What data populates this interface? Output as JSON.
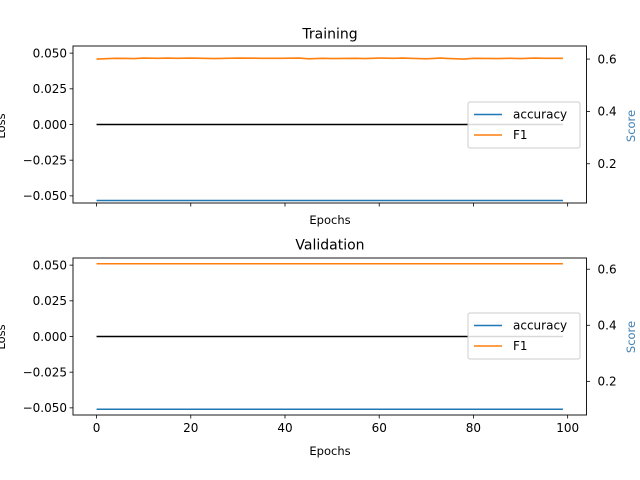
{
  "colors": {
    "accuracy": "#1f77b4",
    "f1": "#ff7f0e",
    "loss": "#000000",
    "score_axis": "#4682b4"
  },
  "chart_data": [
    {
      "type": "line",
      "title": "Training",
      "xlabel": "Epochs",
      "ylabel": "Loss",
      "ylabel_right": "Score",
      "xlim": [
        -5,
        104
      ],
      "xticks": [
        0,
        20,
        40,
        60,
        80,
        100
      ],
      "xtick_labels_shown": false,
      "ylim": [
        -0.055,
        0.055
      ],
      "yticks": [
        0.05,
        0.025,
        0.0,
        -0.025,
        -0.05
      ],
      "ytick_labels": [
        "0.050",
        "0.025",
        "0.000",
        "−0.025",
        "−0.050"
      ],
      "ylim_right": [
        0.05,
        0.65
      ],
      "yticks_right": [
        0.6,
        0.4,
        0.2
      ],
      "ytick_labels_right": [
        "0.6",
        "0.4",
        "0.2"
      ],
      "grid": false,
      "legend_location": "center-right",
      "legend": [
        "accuracy",
        "F1"
      ],
      "series": [
        {
          "name": "",
          "axis": "left",
          "color_key": "loss",
          "x": [
            0,
            99
          ],
          "y": [
            0.0,
            0.0
          ]
        },
        {
          "name": "accuracy",
          "axis": "right",
          "color_key": "accuracy",
          "x": [
            0,
            99
          ],
          "y": [
            0.0596,
            0.0596
          ]
        },
        {
          "name": "F1",
          "axis": "right",
          "color_key": "f1",
          "x": [
            0,
            4,
            8,
            10,
            13,
            15,
            17,
            20,
            25,
            30,
            35,
            39,
            43,
            45,
            48,
            50,
            55,
            57,
            60,
            63,
            65,
            70,
            73,
            75,
            78,
            80,
            85,
            88,
            90,
            93,
            95,
            99
          ],
          "y": [
            0.6,
            0.603,
            0.602,
            0.604,
            0.603,
            0.604,
            0.603,
            0.604,
            0.602,
            0.604,
            0.603,
            0.603,
            0.604,
            0.601,
            0.603,
            0.602,
            0.603,
            0.602,
            0.604,
            0.603,
            0.604,
            0.601,
            0.604,
            0.602,
            0.6,
            0.603,
            0.602,
            0.603,
            0.602,
            0.604,
            0.603,
            0.603
          ]
        }
      ]
    },
    {
      "type": "line",
      "title": "Validation",
      "xlabel": "Epochs",
      "ylabel": "Loss",
      "ylabel_right": "Score",
      "xlim": [
        -5,
        104
      ],
      "xticks": [
        0,
        20,
        40,
        60,
        80,
        100
      ],
      "xtick_labels": [
        "0",
        "20",
        "40",
        "60",
        "80",
        "100"
      ],
      "xtick_labels_shown": true,
      "ylim": [
        -0.055,
        0.055
      ],
      "yticks": [
        0.05,
        0.025,
        0.0,
        -0.025,
        -0.05
      ],
      "ytick_labels": [
        "0.050",
        "0.025",
        "0.000",
        "−0.025",
        "−0.050"
      ],
      "ylim_right": [
        0.08,
        0.64
      ],
      "yticks_right": [
        0.6,
        0.4,
        0.2
      ],
      "ytick_labels_right": [
        "0.6",
        "0.4",
        "0.2"
      ],
      "grid": false,
      "legend_location": "center-right",
      "legend": [
        "accuracy",
        "F1"
      ],
      "series": [
        {
          "name": "",
          "axis": "left",
          "color_key": "loss",
          "x": [
            0,
            99
          ],
          "y": [
            0.0,
            0.0
          ]
        },
        {
          "name": "accuracy",
          "axis": "right",
          "color_key": "accuracy",
          "x": [
            0,
            99
          ],
          "y": [
            0.1005,
            0.1005
          ]
        },
        {
          "name": "F1",
          "axis": "right",
          "color_key": "f1",
          "x": [
            0,
            99
          ],
          "y": [
            0.6195,
            0.6195
          ]
        }
      ]
    }
  ]
}
